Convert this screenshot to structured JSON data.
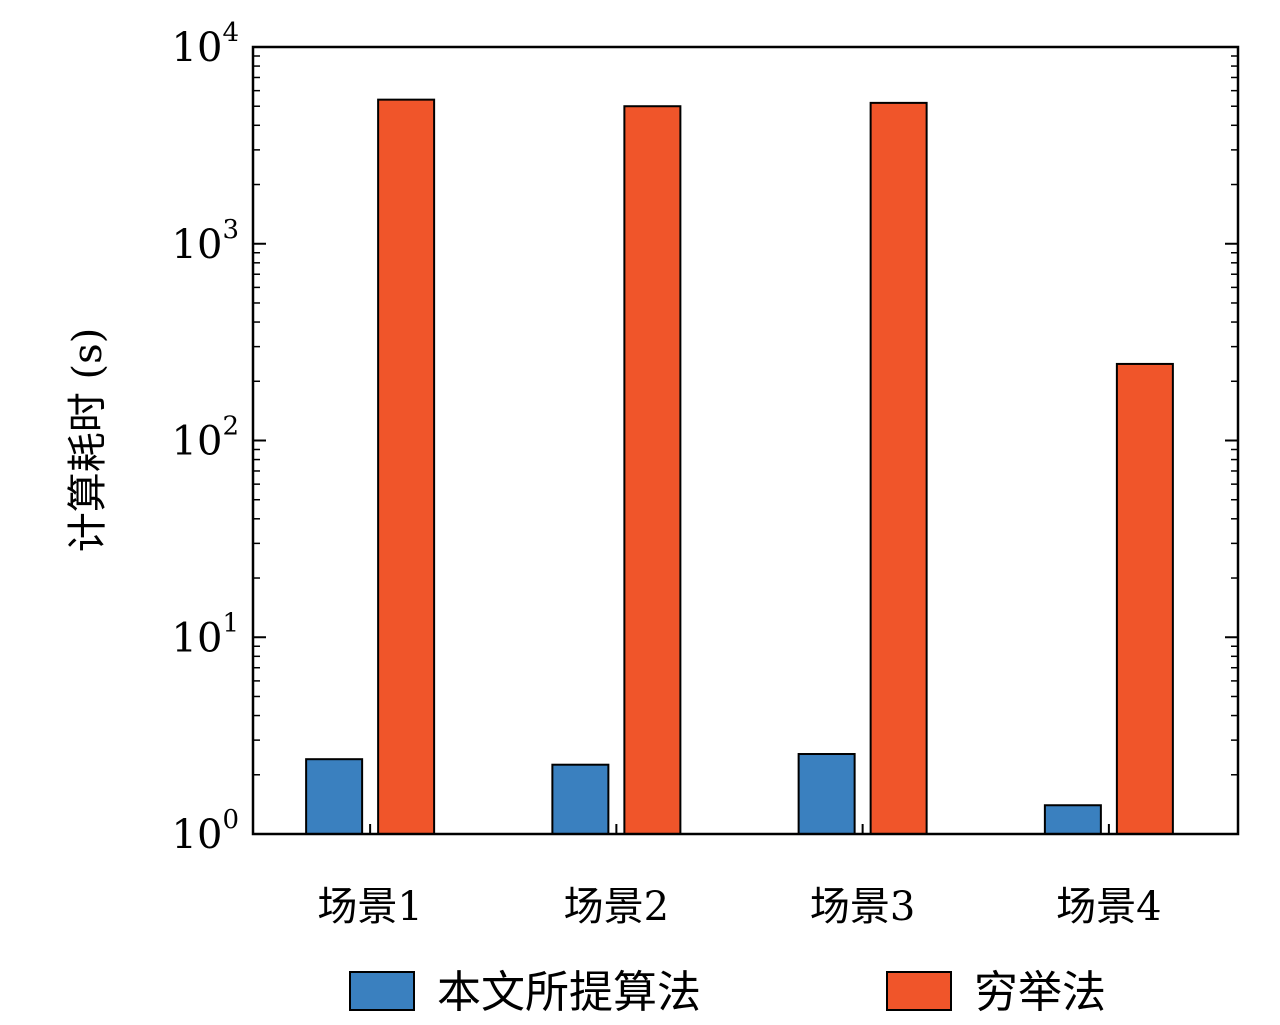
{
  "chart_data": {
    "type": "bar",
    "ylabel": "计算耗时 (s)",
    "yscale": "log",
    "ylim": [
      1,
      10000
    ],
    "y_ticks": [
      {
        "base": "10",
        "exp": "0",
        "value": 1
      },
      {
        "base": "10",
        "exp": "1",
        "value": 10
      },
      {
        "base": "10",
        "exp": "2",
        "value": 100
      },
      {
        "base": "10",
        "exp": "3",
        "value": 1000
      },
      {
        "base": "10",
        "exp": "4",
        "value": 10000
      }
    ],
    "categories": [
      "场景1",
      "场景2",
      "场景3",
      "场景4"
    ],
    "series": [
      {
        "name": "本文所提算法",
        "color": "#3a80bf",
        "values": [
          2.4,
          2.25,
          2.55,
          1.4
        ]
      },
      {
        "name": "穷举法",
        "color": "#f0552a",
        "values": [
          5400,
          5000,
          5200,
          245
        ]
      }
    ],
    "grid": false,
    "legend": "bottom"
  }
}
